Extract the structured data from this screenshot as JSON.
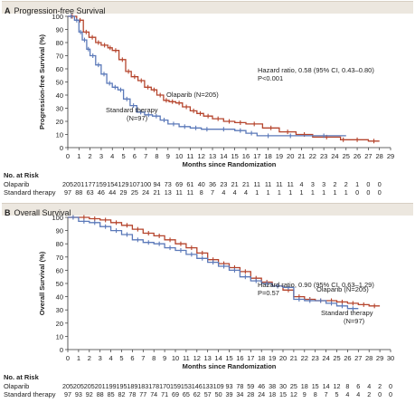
{
  "panels": [
    {
      "letter": "A",
      "title": "Progression-free Survival",
      "ylabel": "Progression-free Survival (%)",
      "xlabel": "Months since Randomization",
      "hr_line1": "Hazard ratio, 0.58 (95% CI, 0.43–0.80)",
      "hr_line2": "P<0.001",
      "label_olaparib": "Olaparib (N=205)",
      "label_standard_1": "Standard therapy",
      "label_standard_2": "(N=97)",
      "risk_title": "No. at Risk",
      "risk_rows": [
        {
          "name": "Olaparib",
          "values": [
            "205",
            "201",
            "177",
            "159",
            "154",
            "129",
            "107",
            "100",
            "94",
            "73",
            "69",
            "61",
            "40",
            "36",
            "23",
            "21",
            "21",
            "11",
            "11",
            "11",
            "11",
            "4",
            "3",
            "3",
            "2",
            "2",
            "1",
            "0",
            "0"
          ]
        },
        {
          "name": "Standard therapy",
          "values": [
            "97",
            "88",
            "63",
            "46",
            "44",
            "29",
            "25",
            "24",
            "21",
            "13",
            "11",
            "11",
            "8",
            "7",
            "4",
            "4",
            "4",
            "1",
            "1",
            "1",
            "1",
            "1",
            "1",
            "1",
            "1",
            "1",
            "0",
            "0",
            "0"
          ]
        }
      ]
    },
    {
      "letter": "B",
      "title": "Overall Survival",
      "ylabel": "Overall Survival (%)",
      "xlabel": "Months since Randomization",
      "hr_line1": "Hazard ratio, 0.90 (95% CI, 0.63–1.29)",
      "hr_line2": "P=0.57",
      "label_olaparib": "Olaparib (N=205)",
      "label_standard_1": "Standard therapy",
      "label_standard_2": "(N=97)",
      "risk_title": "No. at Risk",
      "risk_rows": [
        {
          "name": "Olaparib",
          "values": [
            "205",
            "205",
            "205",
            "201",
            "199",
            "195",
            "189",
            "183",
            "178",
            "170",
            "159",
            "153",
            "146",
            "133",
            "109",
            "93",
            "78",
            "59",
            "46",
            "38",
            "30",
            "25",
            "18",
            "15",
            "14",
            "12",
            "8",
            "6",
            "4",
            "2",
            "0"
          ]
        },
        {
          "name": "Standard therapy",
          "values": [
            "97",
            "93",
            "92",
            "88",
            "85",
            "82",
            "78",
            "77",
            "74",
            "71",
            "69",
            "65",
            "62",
            "57",
            "50",
            "39",
            "34",
            "28",
            "24",
            "18",
            "15",
            "12",
            "9",
            "8",
            "7",
            "5",
            "4",
            "4",
            "2",
            "0",
            "0"
          ]
        }
      ]
    }
  ],
  "colors": {
    "olaparib": "#b5442c",
    "standard": "#5b79b9",
    "band": "#ece7df"
  },
  "chart_data": [
    {
      "type": "line",
      "title": "Progression-free Survival",
      "xlabel": "Months since Randomization",
      "ylabel": "Progression-free Survival (%)",
      "xlim": [
        0,
        29
      ],
      "ylim": [
        0,
        100
      ],
      "xticks": [
        0,
        1,
        2,
        3,
        4,
        5,
        6,
        7,
        8,
        9,
        10,
        11,
        12,
        13,
        14,
        15,
        16,
        17,
        18,
        19,
        20,
        21,
        22,
        23,
        24,
        25,
        26,
        27,
        28,
        29
      ],
      "yticks": [
        0,
        10,
        20,
        30,
        40,
        50,
        60,
        70,
        80,
        90,
        100
      ],
      "series": [
        {
          "name": "Olaparib (N=205)",
          "color": "#b5442c",
          "x": [
            0,
            0.8,
            1.4,
            1.9,
            2.5,
            3.0,
            3.6,
            4.0,
            4.6,
            5.2,
            5.7,
            6.3,
            6.9,
            7.5,
            8.0,
            8.6,
            9.1,
            9.7,
            10.3,
            11.0,
            11.6,
            12.2,
            13.0,
            14.0,
            15.0,
            16.0,
            17.5,
            19.0,
            20.5,
            22.0,
            24.5,
            25.0,
            27.0,
            28.0
          ],
          "y": [
            100,
            97,
            88,
            84,
            80,
            78,
            76,
            74,
            67,
            58,
            54,
            51,
            46,
            44,
            40,
            36,
            35,
            34,
            31,
            28,
            26,
            24,
            22,
            20,
            19,
            18,
            15,
            12,
            10,
            8,
            6,
            6,
            5,
            5
          ]
        },
        {
          "name": "Standard therapy (N=97)",
          "color": "#5b79b9",
          "x": [
            0,
            0.6,
            1.0,
            1.3,
            1.7,
            2.0,
            2.5,
            3.0,
            3.5,
            4.0,
            4.5,
            5.0,
            5.6,
            6.2,
            6.9,
            7.6,
            8.3,
            9.0,
            10.0,
            11.0,
            12.0,
            13.0,
            15.0,
            16.0,
            17.0,
            19.0,
            21.0,
            25.0
          ],
          "y": [
            100,
            97,
            88,
            82,
            75,
            70,
            63,
            56,
            49,
            46,
            44,
            37,
            32,
            27,
            25,
            24,
            21,
            18,
            16,
            15,
            14,
            14,
            13,
            11,
            9,
            9,
            9,
            9
          ]
        }
      ]
    },
    {
      "type": "line",
      "title": "Overall Survival",
      "xlabel": "Months since Randomization",
      "ylabel": "Overall Survival (%)",
      "xlim": [
        0,
        30
      ],
      "ylim": [
        0,
        100
      ],
      "xticks": [
        0,
        1,
        2,
        3,
        4,
        5,
        6,
        7,
        8,
        9,
        10,
        11,
        12,
        13,
        14,
        15,
        16,
        17,
        18,
        19,
        20,
        21,
        22,
        23,
        24,
        25,
        26,
        27,
        28,
        29,
        30
      ],
      "yticks": [
        0,
        10,
        20,
        30,
        40,
        50,
        60,
        70,
        80,
        90,
        100
      ],
      "series": [
        {
          "name": "Olaparib (N=205)",
          "color": "#b5442c",
          "x": [
            0,
            1,
            2,
            3,
            4,
            5,
            6,
            7,
            8,
            9,
            10,
            11,
            12,
            13,
            14,
            15,
            16,
            17,
            18,
            19,
            20,
            21,
            22,
            23,
            24,
            25,
            26,
            27,
            28,
            29
          ],
          "y": [
            100,
            100,
            99,
            98,
            96,
            94,
            91,
            88,
            86,
            83,
            80,
            77,
            73,
            68,
            65,
            62,
            59,
            54,
            51,
            48,
            45,
            40,
            38,
            37,
            37,
            36,
            35,
            34,
            33,
            33
          ]
        },
        {
          "name": "Standard therapy (N=97)",
          "color": "#5b79b9",
          "x": [
            0,
            1,
            2,
            3,
            4,
            5,
            6,
            7,
            8,
            9,
            10,
            11,
            12,
            13,
            14,
            15,
            16,
            17,
            18,
            19,
            20,
            21,
            22,
            23,
            24,
            25,
            26,
            27
          ],
          "y": [
            100,
            97,
            96,
            93,
            90,
            87,
            83,
            81,
            80,
            77,
            75,
            72,
            69,
            66,
            63,
            60,
            55,
            52,
            50,
            48,
            47,
            38,
            37,
            37,
            35,
            33,
            31,
            31
          ]
        }
      ]
    }
  ]
}
